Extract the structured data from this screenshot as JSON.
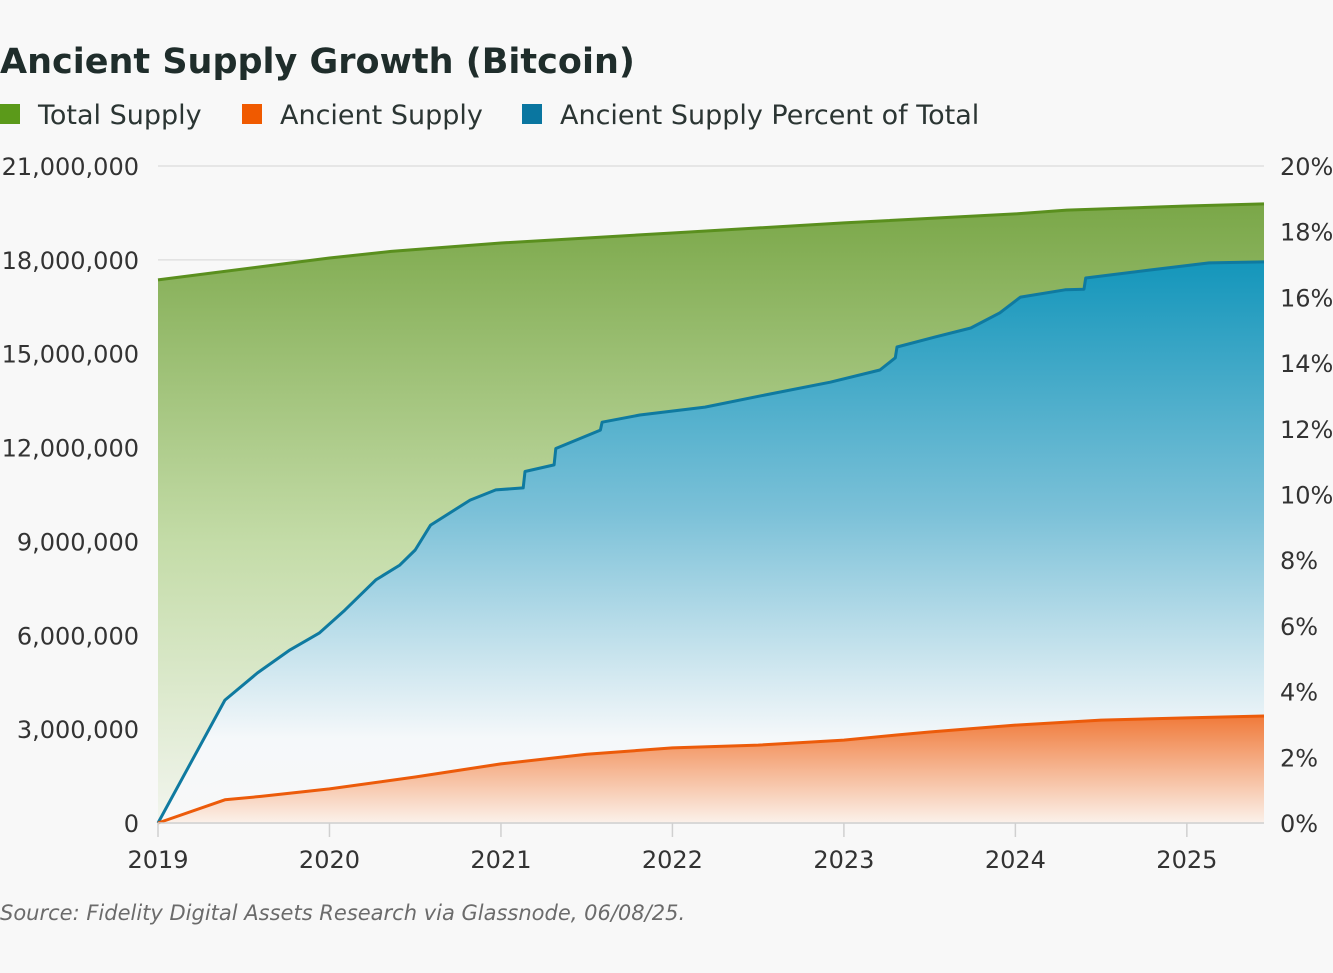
{
  "chart_data": {
    "type": "area",
    "title": "Ancient Supply Growth (Bitcoin)",
    "source": "Source: Fidelity Digital Assets Research via Glassnode, 06/08/25.",
    "legend_placement": "top-left",
    "grid": true,
    "x_ticks": [
      "2019",
      "2020",
      "2021",
      "2022",
      "2023",
      "2024",
      "2025"
    ],
    "x_range": [
      2019,
      2025.45
    ],
    "left_axis": {
      "ylim": [
        0,
        21000000
      ],
      "ticks": [
        "0",
        "3,000,000",
        "6,000,000",
        "9,000,000",
        "12,000,000",
        "15,000,000",
        "18,000,000",
        "21,000,000"
      ]
    },
    "right_axis": {
      "ylim": [
        0,
        20
      ],
      "ticks": [
        "0%",
        "2%",
        "4%",
        "6%",
        "8%",
        "10%",
        "12%",
        "14%",
        "16%",
        "18%",
        "20%"
      ]
    },
    "series": [
      {
        "name": "Total Supply",
        "axis": "left",
        "color": "#5b9a1a",
        "x": [
          2019,
          2020,
          2020.36,
          2021,
          2022,
          2023,
          2024,
          2024.3,
          2025,
          2025.45
        ],
        "y": [
          17360000,
          18060000,
          18270000,
          18540000,
          18860000,
          19180000,
          19470000,
          19590000,
          19720000,
          19790000
        ]
      },
      {
        "name": "Ancient Supply",
        "axis": "left",
        "color": "#f05a00",
        "x": [
          2019,
          2019.39,
          2019.6,
          2020,
          2020.5,
          2021,
          2021.5,
          2022,
          2022.5,
          2023,
          2023.3,
          2023.5,
          2024,
          2024.5,
          2025,
          2025.45
        ],
        "y": [
          0,
          740000,
          850000,
          1090000,
          1470000,
          1890000,
          2200000,
          2400000,
          2490000,
          2650000,
          2810000,
          2910000,
          3130000,
          3290000,
          3360000,
          3420000
        ]
      },
      {
        "name": "Ancient Supply Percent of Total",
        "axis": "right",
        "color": "#0a76a0",
        "x": [
          2019,
          2019.39,
          2019.58,
          2019.77,
          2019.94,
          2020.09,
          2020.27,
          2020.41,
          2020.5,
          2020.59,
          2020.82,
          2020.97,
          2021.13,
          2021.14,
          2021.31,
          2021.32,
          2021.58,
          2021.59,
          2021.81,
          2022.19,
          2022.54,
          2022.92,
          2023.21,
          2023.3,
          2023.31,
          2023.53,
          2023.74,
          2023.91,
          2024.03,
          2024.29,
          2024.4,
          2024.41,
          2024.78,
          2025.13,
          2025.45
        ],
        "y": [
          0,
          3.74,
          4.57,
          5.27,
          5.78,
          6.48,
          7.4,
          7.85,
          8.31,
          9.07,
          9.83,
          10.14,
          10.2,
          10.7,
          10.9,
          11.4,
          11.96,
          12.2,
          12.42,
          12.66,
          13.03,
          13.42,
          13.79,
          14.16,
          14.49,
          14.79,
          15.07,
          15.53,
          16.01,
          16.23,
          16.25,
          16.59,
          16.83,
          17.05,
          17.08
        ]
      }
    ]
  }
}
